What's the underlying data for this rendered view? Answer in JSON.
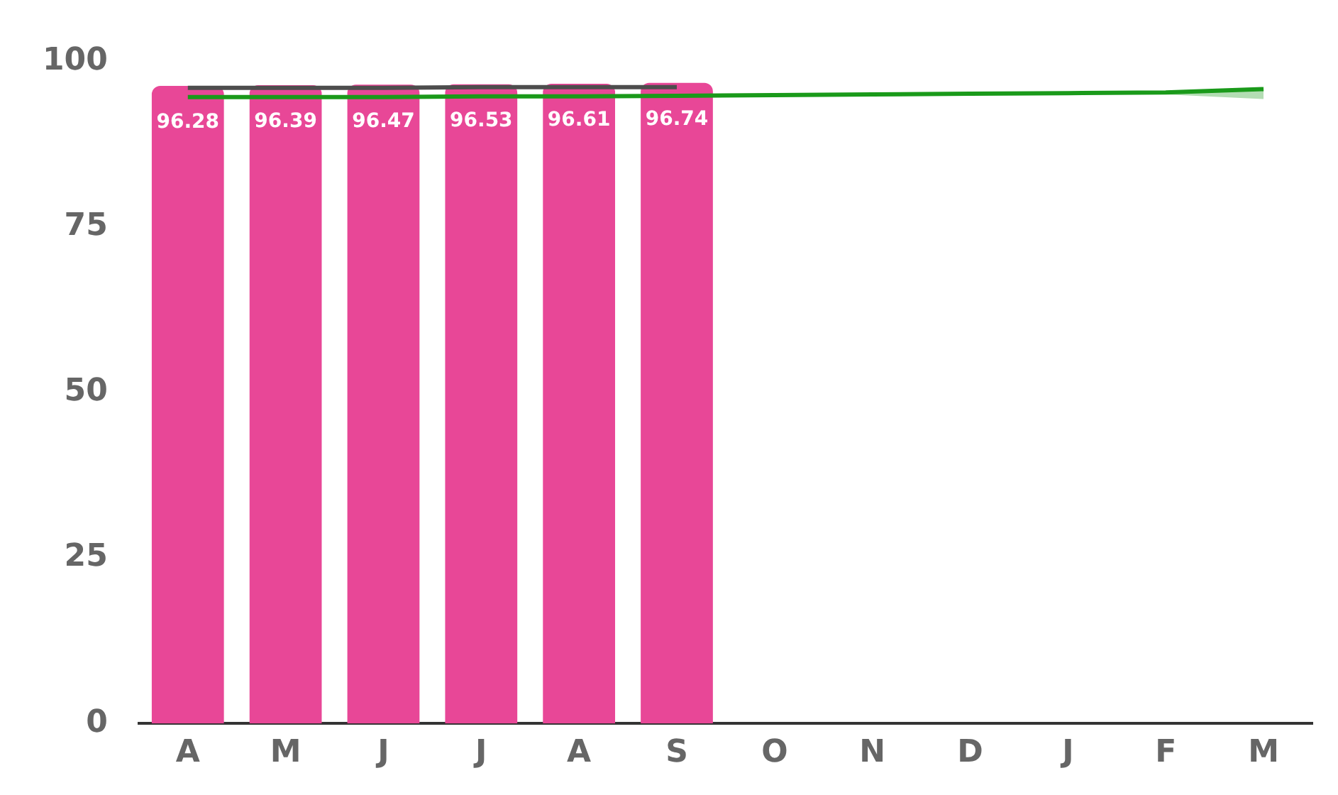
{
  "chart_data": {
    "type": "bar",
    "categories": [
      "A",
      "M",
      "J",
      "J",
      "A",
      "S",
      "O",
      "N",
      "D",
      "J",
      "F",
      "M"
    ],
    "series": [
      {
        "color": "#e84797",
        "values": [
          96.28,
          96.39,
          96.47,
          96.53,
          96.61,
          96.74,
          null,
          null,
          null,
          null,
          null,
          null
        ],
        "value_labels": [
          "96.28",
          "96.39",
          "96.47",
          "96.53",
          "96.61",
          "96.74",
          null,
          null,
          null,
          null,
          null,
          null
        ]
      },
      {
        "type": "line",
        "color": "#4d4d4d",
        "values": [
          96.0,
          96.0,
          96.0,
          96.1,
          96.1,
          96.1,
          null,
          null,
          null,
          null,
          null,
          null
        ]
      },
      {
        "type": "line",
        "color": "#1a9a1a",
        "values": [
          94.6,
          94.6,
          94.6,
          94.7,
          94.7,
          94.8,
          94.9,
          95.0,
          95.1,
          95.2,
          95.3,
          95.8
        ],
        "lower": [
          94.6,
          94.6,
          94.6,
          94.7,
          94.7,
          94.8,
          94.9,
          95.0,
          95.1,
          95.0,
          95.0,
          94.3
        ],
        "upper": [
          94.6,
          94.6,
          94.6,
          94.7,
          94.7,
          94.8,
          94.9,
          95.0,
          95.1,
          95.2,
          95.3,
          95.8
        ]
      }
    ],
    "ylim": [
      0,
      100
    ],
    "yticks": [
      0,
      25,
      50,
      75,
      100
    ],
    "grid": false,
    "legend": false,
    "marker": "none"
  }
}
